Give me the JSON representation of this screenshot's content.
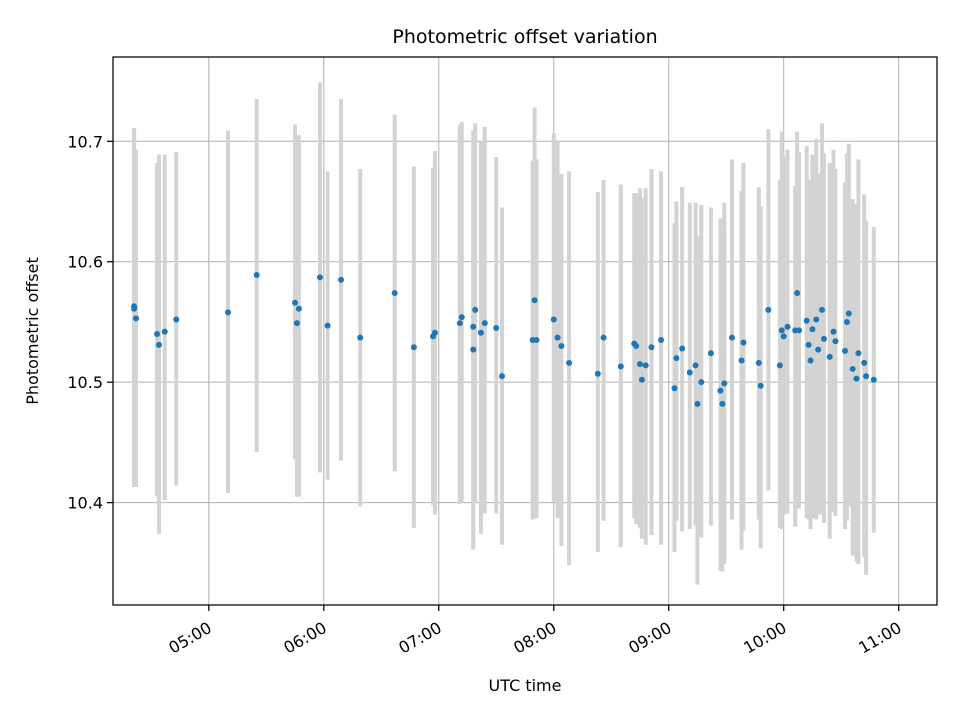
{
  "chart_data": {
    "type": "scatter",
    "title": "Photometric offset variation",
    "xlabel": "UTC time",
    "ylabel": "Photometric offset",
    "x_axis": {
      "kind": "time",
      "range": [
        "04:10",
        "11:20"
      ],
      "ticks": [
        "05:00",
        "06:00",
        "07:00",
        "08:00",
        "09:00",
        "10:00",
        "11:00"
      ],
      "tick_label_rotation_deg": 30
    },
    "y_axis": {
      "range": [
        10.315,
        10.77
      ],
      "ticks": [
        10.4,
        10.5,
        10.6,
        10.7
      ],
      "tick_labels": [
        "10.4",
        "10.5",
        "10.6",
        "10.7"
      ]
    },
    "grid": true,
    "legend": "none",
    "colors": {
      "marker": "#1f77b4",
      "errorbar": "#d3d3d3",
      "grid": "#b0b0b0"
    },
    "series": [
      {
        "x": [
          "04:21",
          "04:21",
          "04:22",
          "04:33",
          "04:34",
          "04:37",
          "04:43",
          "05:10",
          "05:25",
          "05:45",
          "05:46",
          "05:47",
          "05:58",
          "06:02",
          "06:09",
          "06:19",
          "06:37",
          "06:47",
          "06:57",
          "06:58",
          "07:11",
          "07:12",
          "07:18",
          "07:18",
          "07:19",
          "07:22",
          "07:24",
          "07:30",
          "07:33",
          "07:49",
          "07:50",
          "07:51",
          "08:00",
          "08:02",
          "08:04",
          "08:08",
          "08:23",
          "08:26",
          "08:35",
          "08:42",
          "08:43",
          "08:45",
          "08:46",
          "08:48",
          "08:51",
          "08:56",
          "09:03",
          "09:04",
          "09:07",
          "09:11",
          "09:14",
          "09:15",
          "09:17",
          "09:22",
          "09:27",
          "09:28",
          "09:29",
          "09:33",
          "09:38",
          "09:39",
          "09:47",
          "09:48",
          "09:52",
          "09:58",
          "09:59",
          "10:00",
          "10:02",
          "10:06",
          "10:07",
          "10:08",
          "10:12",
          "10:13",
          "10:14",
          "10:15",
          "10:17",
          "10:18",
          "10:20",
          "10:21",
          "10:24",
          "10:26",
          "10:27",
          "10:32",
          "10:33",
          "10:34",
          "10:36",
          "10:38",
          "10:39",
          "10:42",
          "10:43",
          "10:47"
        ],
        "y": [
          10.563,
          10.561,
          10.553,
          10.54,
          10.531,
          10.542,
          10.552,
          10.558,
          10.589,
          10.566,
          10.549,
          10.561,
          10.587,
          10.547,
          10.585,
          10.537,
          10.574,
          10.529,
          10.538,
          10.541,
          10.549,
          10.554,
          10.546,
          10.527,
          10.56,
          10.541,
          10.549,
          10.545,
          10.505,
          10.535,
          10.568,
          10.535,
          10.552,
          10.537,
          10.53,
          10.516,
          10.507,
          10.537,
          10.513,
          10.532,
          10.53,
          10.515,
          10.502,
          10.514,
          10.529,
          10.535,
          10.495,
          10.52,
          10.528,
          10.508,
          10.514,
          10.482,
          10.5,
          10.524,
          10.493,
          10.482,
          10.499,
          10.537,
          10.518,
          10.533,
          10.516,
          10.497,
          10.56,
          10.514,
          10.543,
          10.538,
          10.546,
          10.543,
          10.574,
          10.543,
          10.551,
          10.531,
          10.518,
          10.544,
          10.552,
          10.527,
          10.56,
          10.536,
          10.521,
          10.542,
          10.534,
          10.526,
          10.55,
          10.557,
          10.511,
          10.503,
          10.524,
          10.516,
          10.505,
          10.502
        ],
        "yerr_low": [
          0.15,
          0.148,
          0.14,
          0.135,
          0.157,
          0.14,
          0.138,
          0.15,
          0.147,
          0.13,
          0.144,
          0.156,
          0.162,
          0.128,
          0.15,
          0.14,
          0.148,
          0.15,
          0.14,
          0.151,
          0.15,
          0.154,
          0.185,
          0.164,
          0.16,
          0.167,
          0.158,
          0.154,
          0.14,
          0.149,
          0.17,
          0.148,
          0.151,
          0.15,
          0.166,
          0.168,
          0.148,
          0.152,
          0.15,
          0.145,
          0.148,
          0.136,
          0.132,
          0.149,
          0.156,
          0.17,
          0.136,
          0.135,
          0.152,
          0.13,
          0.133,
          0.15,
          0.129,
          0.143,
          0.15,
          0.139,
          0.15,
          0.151,
          0.157,
          0.156,
          0.13,
          0.135,
          0.15,
          0.135,
          0.165,
          0.148,
          0.155,
          0.163,
          0.17,
          0.148,
          0.164,
          0.145,
          0.14,
          0.157,
          0.166,
          0.137,
          0.17,
          0.153,
          0.151,
          0.15,
          0.145,
          0.148,
          0.165,
          0.16,
          0.155,
          0.152,
          0.175,
          0.161,
          0.165,
          0.127
        ],
        "yerr_high": [
          0.148,
          0.15,
          0.14,
          0.142,
          0.158,
          0.147,
          0.139,
          0.151,
          0.146,
          0.148,
          0.144,
          0.144,
          0.162,
          0.128,
          0.15,
          0.14,
          0.148,
          0.15,
          0.14,
          0.151,
          0.165,
          0.162,
          0.163,
          0.165,
          0.155,
          0.159,
          0.163,
          0.142,
          0.14,
          0.149,
          0.16,
          0.15,
          0.155,
          0.163,
          0.143,
          0.159,
          0.151,
          0.131,
          0.151,
          0.125,
          0.127,
          0.146,
          0.151,
          0.147,
          0.148,
          0.14,
          0.137,
          0.13,
          0.134,
          0.141,
          0.135,
          0.139,
          0.147,
          0.121,
          0.143,
          0.145,
          0.15,
          0.148,
          0.141,
          0.149,
          0.146,
          0.149,
          0.15,
          0.154,
          0.165,
          0.15,
          0.147,
          0.12,
          0.134,
          0.148,
          0.145,
          0.136,
          0.15,
          0.145,
          0.15,
          0.146,
          0.155,
          0.154,
          0.161,
          0.151,
          0.143,
          0.14,
          0.14,
          0.141,
          0.141,
          0.145,
          0.161,
          0.14,
          0.129,
          0.127
        ]
      }
    ]
  }
}
